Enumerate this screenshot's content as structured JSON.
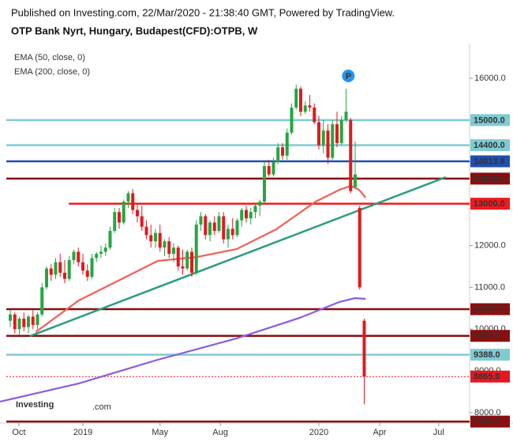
{
  "chart_data": {
    "type": "candlestick",
    "published": "Published on Investing.com, 22/Mar/2020 - 21:38:40 GMT, Powered by TradingView.",
    "title": "OTP Bank Nyrt, Hungary, Budapest(CFD):OTPB, W",
    "marker_label": "P",
    "logo": [
      "Investing",
      ".com"
    ],
    "up_color": "#26a640",
    "down_color": "#e3181f",
    "xlim": [
      -2.26,
      101.22
    ],
    "xticks": [
      {
        "value": 1.9,
        "label": "Oct"
      },
      {
        "value": 16.0,
        "label": "2019"
      },
      {
        "value": 33.0,
        "label": "May"
      },
      {
        "value": 46.3,
        "label": "Aug"
      },
      {
        "value": 68.0,
        "label": "2020"
      },
      {
        "value": 81.4,
        "label": "Apr"
      },
      {
        "value": 94.4,
        "label": "Jul"
      }
    ],
    "ylim": [
      7754,
      16832
    ],
    "yticks": [
      {
        "value": 8000,
        "label": "8000.0"
      },
      {
        "value": 9000,
        "label": "9000.0"
      },
      {
        "value": 10000,
        "label": "10000.0"
      },
      {
        "value": 11000,
        "label": "11000.0"
      },
      {
        "value": 12000,
        "label": "12000.0"
      },
      {
        "value": 13000,
        "label": "13000.0"
      },
      {
        "value": 14000,
        "label": "14000.0"
      },
      {
        "value": 15000,
        "label": "15000.0"
      },
      {
        "value": 16000,
        "label": "16000.0"
      }
    ],
    "ohlc": [
      [
        10200,
        10450,
        10050,
        10350
      ],
      [
        10350,
        10400,
        9900,
        10000
      ],
      [
        10000,
        10300,
        9850,
        10250
      ],
      [
        10250,
        10400,
        9950,
        10050
      ],
      [
        10050,
        10350,
        9900,
        10300
      ],
      [
        10300,
        10450,
        10000,
        10100
      ],
      [
        10100,
        10400,
        10000,
        10350
      ],
      [
        10350,
        11100,
        10300,
        11000
      ],
      [
        11000,
        11500,
        10950,
        11450
      ],
      [
        11450,
        11550,
        11150,
        11300
      ],
      [
        11300,
        11700,
        11200,
        11600
      ],
      [
        11600,
        11800,
        11250,
        11350
      ],
      [
        11350,
        11650,
        11100,
        11200
      ],
      [
        11200,
        11750,
        11150,
        11650
      ],
      [
        11650,
        11900,
        11550,
        11850
      ],
      [
        11850,
        11950,
        11500,
        11600
      ],
      [
        11600,
        11800,
        11300,
        11400
      ],
      [
        11400,
        11550,
        11150,
        11250
      ],
      [
        11250,
        11800,
        11200,
        11700
      ],
      [
        11700,
        11850,
        11600,
        11800
      ],
      [
        11800,
        12000,
        11700,
        11850
      ],
      [
        11850,
        12050,
        11750,
        11950
      ],
      [
        11950,
        12450,
        11900,
        12350
      ],
      [
        12350,
        12900,
        12300,
        12800
      ],
      [
        12800,
        12900,
        12400,
        12550
      ],
      [
        12550,
        13100,
        12500,
        13050
      ],
      [
        13050,
        13300,
        12900,
        13250
      ],
      [
        13250,
        13350,
        12750,
        12850
      ],
      [
        12850,
        13000,
        12550,
        12700
      ],
      [
        12700,
        12950,
        12350,
        12450
      ],
      [
        12450,
        12600,
        12150,
        12250
      ],
      [
        12250,
        12500,
        11950,
        12100
      ],
      [
        12100,
        12400,
        11950,
        12300
      ],
      [
        12300,
        12500,
        11850,
        11950
      ],
      [
        11950,
        12150,
        11750,
        12100
      ],
      [
        12100,
        12200,
        11700,
        11800
      ],
      [
        11800,
        12050,
        11600,
        11950
      ],
      [
        11950,
        12000,
        11400,
        11500
      ],
      [
        11500,
        11900,
        11300,
        11450
      ],
      [
        11450,
        11900,
        11400,
        11850
      ],
      [
        11850,
        11950,
        11250,
        11350
      ],
      [
        11350,
        12600,
        11300,
        12500
      ],
      [
        12500,
        12800,
        12350,
        12700
      ],
      [
        12700,
        12750,
        12150,
        12250
      ],
      [
        12250,
        12600,
        12100,
        12550
      ],
      [
        12550,
        12700,
        12250,
        12350
      ],
      [
        12350,
        12800,
        12300,
        12700
      ],
      [
        12700,
        12800,
        12050,
        12150
      ],
      [
        12150,
        12500,
        11950,
        12400
      ],
      [
        12400,
        12650,
        12150,
        12250
      ],
      [
        12250,
        12650,
        12200,
        12600
      ],
      [
        12600,
        12900,
        12450,
        12850
      ],
      [
        12850,
        12950,
        12550,
        12650
      ],
      [
        12650,
        12900,
        12500,
        12800
      ],
      [
        12800,
        13000,
        12650,
        12950
      ],
      [
        12950,
        13100,
        12700,
        13050
      ],
      [
        13050,
        14000,
        13000,
        13900
      ],
      [
        13900,
        14050,
        13650,
        13700
      ],
      [
        13700,
        14100,
        13650,
        14000
      ],
      [
        14000,
        14450,
        13950,
        14350
      ],
      [
        14350,
        14450,
        14050,
        14150
      ],
      [
        14150,
        14800,
        14050,
        14700
      ],
      [
        14700,
        15400,
        14650,
        15300
      ],
      [
        15300,
        15850,
        15250,
        15750
      ],
      [
        15750,
        15800,
        15100,
        15200
      ],
      [
        15200,
        15450,
        15150,
        15350
      ],
      [
        15350,
        15600,
        15200,
        15300
      ],
      [
        15300,
        15400,
        14900,
        14950
      ],
      [
        14950,
        15100,
        14300,
        14400
      ],
      [
        14400,
        15000,
        14200,
        14750
      ],
      [
        14750,
        14900,
        13950,
        14100
      ],
      [
        14100,
        15000,
        14050,
        14900
      ],
      [
        14900,
        15200,
        14350,
        14450
      ],
      [
        14450,
        15100,
        14400,
        15000
      ],
      [
        15000,
        15750,
        14950,
        15200
      ],
      [
        15000,
        15050,
        13250,
        13300
      ],
      [
        13400,
        14500,
        13350,
        13700
      ],
      [
        12900,
        12950,
        10950,
        11000
      ],
      [
        10200,
        10250,
        8200,
        8865
      ]
    ],
    "series": [
      {
        "name": "EMA (50, close, 0)",
        "color": "#f0605a",
        "x": [
          5.6,
          15.1,
          23.8,
          32.5,
          41.2,
          49.9,
          58.6,
          67.3,
          72.5,
          75.1,
          76.9,
          78.3
        ],
        "values": [
          9930,
          10686,
          11158,
          11631,
          11726,
          11915,
          12387,
          13050,
          13330,
          13428,
          13330,
          13144
        ]
      },
      {
        "name": "EMA (200, close, 0)",
        "color": "#8a5ae6",
        "x": [
          -2.26,
          15.1,
          32.5,
          49.9,
          63.8,
          72.5,
          76,
          78.3
        ],
        "values": [
          8265,
          8700,
          9267,
          9778,
          10270,
          10648,
          10742,
          10723
        ]
      }
    ],
    "trendline": {
      "color": "#2a9d80",
      "x": [
        4.35,
        96
      ],
      "values": [
        9834,
        13636
      ]
    },
    "levels": [
      {
        "value": 15000,
        "label": "15000.0",
        "color": "#7fcbd4"
      },
      {
        "value": 14400,
        "label": "14400.0",
        "color": "#7fcbd4"
      },
      {
        "value": 14013.8,
        "label": "14013.8",
        "color": "#1f4fb4"
      },
      {
        "value": 13600,
        "label": "13600.0",
        "color": "#8b0e0e"
      },
      {
        "value": 13000,
        "label": "13000.0",
        "color": "#f0191e",
        "from": 12.9
      },
      {
        "value": 10477,
        "label": "10477.0",
        "color": "#8b0e0e"
      },
      {
        "value": 9838.6,
        "label": "9838.6",
        "color": "#8b0e0e"
      },
      {
        "value": 9388,
        "label": "9388.0",
        "color": "#7fcbd4"
      },
      {
        "value": 8865,
        "label": "8865.0",
        "color": "#e3181f",
        "dotted": true
      },
      {
        "value": 7788.7,
        "label": "7788.7",
        "color": "#8b0e0e"
      }
    ]
  }
}
